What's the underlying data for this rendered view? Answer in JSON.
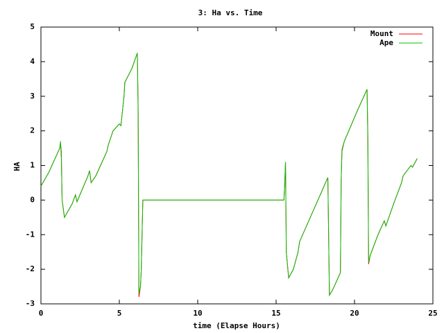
{
  "chart_data": {
    "type": "line",
    "title": "3: Ha vs. Time",
    "x_label": "time (Elapse Hours)",
    "y_label": "HA",
    "x": [
      0,
      0.5,
      1,
      1.2,
      1.25,
      1.3,
      1.35,
      1.5,
      2,
      2.2,
      2.3,
      3,
      3.1,
      3.2,
      3.5,
      4.2,
      4.3,
      4.6,
      5,
      5.1,
      5.3,
      5.35,
      5.8,
      6.15,
      6.2,
      6.25,
      6.35,
      6.4,
      6.5,
      15.5,
      15.55,
      15.6,
      15.65,
      15.8,
      16.1,
      16.4,
      16.5,
      18.3,
      18.4,
      18.6,
      19.1,
      19.15,
      19.2,
      19.35,
      20.2,
      20.5,
      20.8,
      20.85,
      20.9,
      21.0,
      21.5,
      21.9,
      22,
      22.5,
      23,
      23.1,
      23.6,
      23.7,
      24
    ],
    "series": [
      {
        "name": "Mount",
        "color": "#ff0000",
        "values": [
          0.4,
          0.8,
          1.3,
          1.5,
          1.65,
          1.4,
          0,
          -0.5,
          -0.1,
          0.15,
          -0.05,
          0.7,
          0.85,
          0.5,
          0.7,
          1.4,
          1.6,
          2.0,
          2.2,
          2.15,
          3.0,
          3.4,
          3.8,
          4.25,
          2.65,
          -2.8,
          -2.5,
          -2.0,
          0,
          0,
          0.5,
          1.1,
          -1.5,
          -2.25,
          -2.0,
          -1.5,
          -1.2,
          0.65,
          -2.75,
          -2.6,
          -2.1,
          0.55,
          1.45,
          1.7,
          2.6,
          2.9,
          3.2,
          1.9,
          -1.85,
          -1.6,
          -1.0,
          -0.6,
          -0.75,
          -0.1,
          0.5,
          0.7,
          1.0,
          0.95,
          1.2
        ]
      },
      {
        "name": "Ape",
        "color": "#00c000",
        "values": [
          0.4,
          0.8,
          1.3,
          1.5,
          1.7,
          1.2,
          0,
          -0.5,
          -0.1,
          0.15,
          -0.05,
          0.7,
          0.85,
          0.5,
          0.7,
          1.4,
          1.6,
          2.0,
          2.2,
          2.15,
          3.0,
          3.4,
          3.8,
          4.25,
          2.5,
          -2.7,
          -2.5,
          -2.0,
          0,
          0,
          0.5,
          1.1,
          -1.5,
          -2.25,
          -2.0,
          -1.5,
          -1.2,
          0.65,
          -2.75,
          -2.6,
          -2.1,
          0.6,
          1.4,
          1.7,
          2.6,
          2.9,
          3.2,
          1.7,
          -1.8,
          -1.6,
          -1.0,
          -0.6,
          -0.75,
          -0.1,
          0.5,
          0.7,
          1.0,
          0.95,
          1.2
        ]
      }
    ],
    "xlim": [
      0,
      25
    ],
    "xticks": [
      0,
      5,
      10,
      15,
      20,
      25
    ],
    "ylim": [
      -3,
      5
    ],
    "yticks": [
      -3,
      -2,
      -1,
      0,
      1,
      2,
      3,
      4,
      5
    ],
    "legend": "upper right"
  }
}
